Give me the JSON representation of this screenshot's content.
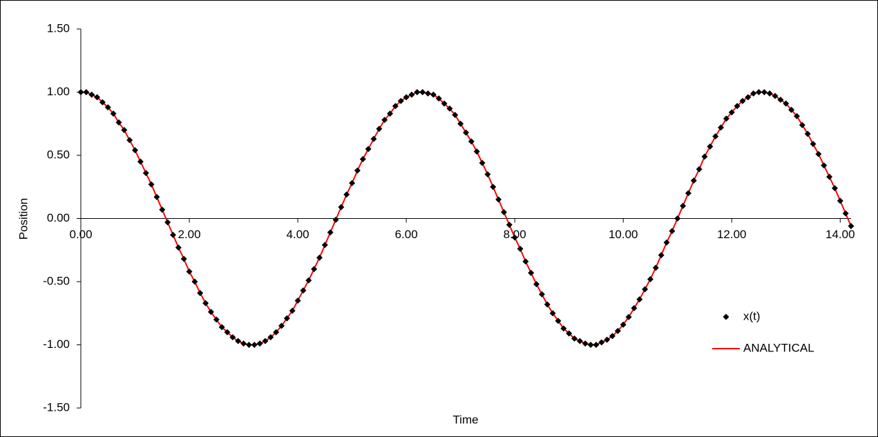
{
  "chart_data": {
    "type": "scatter",
    "x_label": "Time",
    "y_label": "Position",
    "x": [
      0,
      0.1,
      0.2,
      0.3,
      0.4,
      0.5,
      0.6,
      0.7,
      0.8,
      0.9,
      1,
      1.1,
      1.2,
      1.3,
      1.4,
      1.5,
      1.6,
      1.7,
      1.8,
      1.9,
      2,
      2.1,
      2.2,
      2.3,
      2.4,
      2.5,
      2.6,
      2.7,
      2.8,
      2.9,
      3,
      3.1,
      3.2,
      3.3,
      3.4,
      3.5,
      3.6,
      3.7,
      3.8,
      3.9,
      4,
      4.1,
      4.2,
      4.3,
      4.4,
      4.5,
      4.6,
      4.7,
      4.8,
      4.9,
      5,
      5.1,
      5.2,
      5.3,
      5.4,
      5.5,
      5.6,
      5.7,
      5.8,
      5.9,
      6,
      6.1,
      6.2,
      6.3,
      6.4,
      6.5,
      6.6,
      6.7,
      6.8,
      6.9,
      7,
      7.1,
      7.2,
      7.3,
      7.4,
      7.5,
      7.6,
      7.7,
      7.8,
      7.9,
      8,
      8.1,
      8.2,
      8.3,
      8.4,
      8.5,
      8.6,
      8.7,
      8.8,
      8.9,
      9,
      9.1,
      9.2,
      9.3,
      9.4,
      9.5,
      9.6,
      9.7,
      9.8,
      9.9,
      10,
      10.1,
      10.2,
      10.3,
      10.4,
      10.5,
      10.6,
      10.7,
      10.8,
      10.9,
      11,
      11.1,
      11.2,
      11.3,
      11.4,
      11.5,
      11.6,
      11.7,
      11.8,
      11.9,
      12,
      12.1,
      12.2,
      12.3,
      12.4,
      12.5,
      12.6,
      12.7,
      12.8,
      12.9,
      13,
      13.1,
      13.2,
      13.3,
      13.4,
      13.5,
      13.6,
      13.7,
      13.8,
      13.9,
      14,
      14.1,
      14.2
    ],
    "series": [
      {
        "name": "x(t)",
        "color": "#000000",
        "marker": "diamond",
        "values": [
          1,
          1,
          0.98,
          0.96,
          0.92,
          0.88,
          0.83,
          0.76,
          0.7,
          0.62,
          0.54,
          0.45,
          0.36,
          0.27,
          0.17,
          0.07,
          -0.03,
          -0.13,
          -0.23,
          -0.32,
          -0.42,
          -0.5,
          -0.59,
          -0.67,
          -0.74,
          -0.8,
          -0.86,
          -0.9,
          -0.94,
          -0.97,
          -0.99,
          -1,
          -1,
          -0.99,
          -0.97,
          -0.94,
          -0.9,
          -0.85,
          -0.79,
          -0.73,
          -0.65,
          -0.57,
          -0.49,
          -0.4,
          -0.31,
          -0.21,
          -0.11,
          -0.01,
          0.09,
          0.19,
          0.28,
          0.38,
          0.47,
          0.55,
          0.63,
          0.71,
          0.78,
          0.83,
          0.89,
          0.93,
          0.96,
          0.98,
          1,
          1,
          0.99,
          0.98,
          0.95,
          0.91,
          0.87,
          0.82,
          0.75,
          0.68,
          0.61,
          0.53,
          0.44,
          0.35,
          0.25,
          0.15,
          0.05,
          -0.05,
          -0.15,
          -0.24,
          -0.34,
          -0.43,
          -0.52,
          -0.6,
          -0.68,
          -0.75,
          -0.81,
          -0.87,
          -0.91,
          -0.95,
          -0.97,
          -0.99,
          -1,
          -1,
          -0.98,
          -0.96,
          -0.93,
          -0.89,
          -0.84,
          -0.78,
          -0.71,
          -0.64,
          -0.56,
          -0.48,
          -0.39,
          -0.29,
          -0.19,
          -0.1,
          0,
          0.1,
          0.2,
          0.3,
          0.39,
          0.49,
          0.57,
          0.65,
          0.72,
          0.79,
          0.84,
          0.89,
          0.93,
          0.96,
          0.99,
          1,
          1,
          0.99,
          0.97,
          0.94,
          0.91,
          0.86,
          0.81,
          0.74,
          0.67,
          0.59,
          0.51,
          0.42,
          0.33,
          0.24,
          0.14,
          0.04,
          -0.06
        ]
      },
      {
        "name": "ANALYTICAL",
        "color": "#ff0000",
        "marker": "line",
        "values": [
          1,
          1,
          0.98,
          0.96,
          0.92,
          0.88,
          0.83,
          0.76,
          0.7,
          0.62,
          0.54,
          0.45,
          0.36,
          0.27,
          0.17,
          0.07,
          -0.03,
          -0.13,
          -0.23,
          -0.32,
          -0.42,
          -0.5,
          -0.59,
          -0.67,
          -0.74,
          -0.8,
          -0.86,
          -0.9,
          -0.94,
          -0.97,
          -0.99,
          -1,
          -1,
          -0.99,
          -0.97,
          -0.94,
          -0.9,
          -0.85,
          -0.79,
          -0.73,
          -0.65,
          -0.57,
          -0.49,
          -0.4,
          -0.31,
          -0.21,
          -0.11,
          -0.01,
          0.09,
          0.19,
          0.28,
          0.38,
          0.47,
          0.55,
          0.63,
          0.71,
          0.78,
          0.83,
          0.89,
          0.93,
          0.96,
          0.98,
          1,
          1,
          0.99,
          0.98,
          0.95,
          0.91,
          0.87,
          0.82,
          0.75,
          0.68,
          0.61,
          0.53,
          0.44,
          0.35,
          0.25,
          0.15,
          0.05,
          -0.05,
          -0.15,
          -0.24,
          -0.34,
          -0.43,
          -0.52,
          -0.6,
          -0.68,
          -0.75,
          -0.81,
          -0.87,
          -0.91,
          -0.95,
          -0.97,
          -0.99,
          -1,
          -1,
          -0.98,
          -0.96,
          -0.93,
          -0.89,
          -0.84,
          -0.78,
          -0.71,
          -0.64,
          -0.56,
          -0.48,
          -0.39,
          -0.29,
          -0.19,
          -0.1,
          0,
          0.1,
          0.2,
          0.3,
          0.39,
          0.49,
          0.57,
          0.65,
          0.72,
          0.79,
          0.84,
          0.89,
          0.93,
          0.96,
          0.99,
          1,
          1,
          0.99,
          0.97,
          0.94,
          0.91,
          0.86,
          0.81,
          0.74,
          0.67,
          0.59,
          0.51,
          0.42,
          0.33,
          0.24,
          0.14,
          0.04,
          -0.06
        ]
      }
    ],
    "xlim": [
      0,
      14.2
    ],
    "ylim": [
      -1.5,
      1.5
    ],
    "xticks": [
      {
        "value": 0,
        "label": "0.00"
      },
      {
        "value": 2,
        "label": "2.00"
      },
      {
        "value": 4,
        "label": "4.00"
      },
      {
        "value": 6,
        "label": "6.00"
      },
      {
        "value": 8,
        "label": "8.00"
      },
      {
        "value": 10,
        "label": "10.00"
      },
      {
        "value": 12,
        "label": "12.00"
      },
      {
        "value": 14,
        "label": "14.00"
      }
    ],
    "yticks": [
      {
        "value": -1.5,
        "label": "-1.50"
      },
      {
        "value": -1,
        "label": "-1.00"
      },
      {
        "value": -0.5,
        "label": "-0.50"
      },
      {
        "value": 0,
        "label": "0.00"
      },
      {
        "value": 0.5,
        "label": "0.50"
      },
      {
        "value": 1,
        "label": "1.00"
      },
      {
        "value": 1.5,
        "label": "1.50"
      }
    ],
    "grid": false
  }
}
